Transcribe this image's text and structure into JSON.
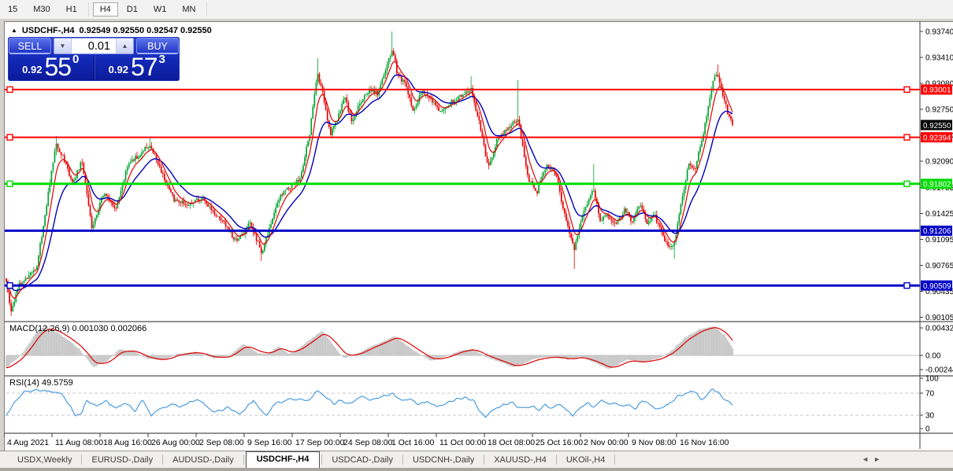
{
  "toolbar": {
    "timeframes": [
      "15",
      "M30",
      "H1",
      "H4",
      "D1",
      "W1",
      "MN"
    ],
    "active": "H4"
  },
  "chart": {
    "collapse_icon": "▲",
    "title": "USDCHF-,H4",
    "ohlc": "0.92549 0.92550 0.92547 0.92550"
  },
  "trade_panel": {
    "sell_label": "SELL",
    "buy_label": "BUY",
    "volume": "0.01",
    "down_icon": "▼",
    "up_icon": "▲",
    "sell_price": {
      "prefix": "0.92",
      "big": "55",
      "sup": "0"
    },
    "buy_price": {
      "prefix": "0.92",
      "big": "57",
      "sup": "3"
    }
  },
  "indicators": {
    "macd_label": "MACD(12,26,9) 0.001030 0.002066",
    "rsi_label": "RSI(14) 49.5759"
  },
  "tabs": {
    "items": [
      "USDX,Weekly",
      "EURUSD-,Daily",
      "AUDUSD-,Daily",
      "USDCHF-,H4",
      "USDCAD-,Daily",
      "USDCNH-,Daily",
      "XAUUSD-,H4",
      "UKOil-,H4"
    ],
    "active": "USDCHF-,H4",
    "scroll_left_icon": "◄",
    "scroll_right_icon": "►"
  },
  "colors": {
    "bull": "#00a32e",
    "bear": "#e60000",
    "ma_fast": "#e00000",
    "ma_slow": "#0000bb",
    "hist": "#c6c6c6",
    "signal": "#dd0000",
    "rsi": "#3d95e0",
    "axis_text": "#000000",
    "level_red": "#ff0000",
    "level_green": "#00dd00",
    "level_blue": "#0000c8",
    "bid_label_bg": "#000000"
  },
  "chart_data": {
    "type": "candlestick",
    "symbol": "USDCHF-",
    "timeframe": "H4",
    "current_price": 0.9255,
    "y_ticks": [
      "0.93740",
      "0.93410",
      "0.93080",
      "0.92750",
      "0.92420",
      "0.92090",
      "0.91755",
      "0.91425",
      "0.91095",
      "0.90765",
      "0.90435",
      "0.90105"
    ],
    "x_labels": [
      "4 Aug 2021",
      "11 Aug 08:00",
      "18 Aug 16:00",
      "26 Aug 00:00",
      "2 Sep 08:00",
      "9 Sep 16:00",
      "17 Sep 00:00",
      "24 Sep 08:00",
      "1 Oct 16:00",
      "11 Oct 00:00",
      "18 Oct 08:00",
      "25 Oct 16:00",
      "2 Nov 00:00",
      "9 Nov 08:00",
      "16 Nov 16:00"
    ],
    "levels": [
      {
        "price": 0.93001,
        "label": "0.93001",
        "color": "#ff0000",
        "width": 2,
        "handles": true
      },
      {
        "price": 0.92394,
        "label": "0.92394",
        "color": "#ff0000",
        "width": 2,
        "handles": true
      },
      {
        "price": 0.91802,
        "label": "0.91802",
        "color": "#00dd00",
        "width": 3,
        "handles": true
      },
      {
        "price": 0.91206,
        "label": "0.91206",
        "color": "#0000c8",
        "width": 3,
        "handles": false
      },
      {
        "price": 0.90509,
        "label": "0.90509",
        "color": "#0000c8",
        "width": 3,
        "handles": true
      }
    ],
    "bid_label": "0.92550",
    "price_path": [
      [
        0,
        0.9058
      ],
      [
        0.006,
        0.9016
      ],
      [
        0.018,
        0.9052
      ],
      [
        0.03,
        0.9062
      ],
      [
        0.042,
        0.9075
      ],
      [
        0.055,
        0.915
      ],
      [
        0.068,
        0.9232
      ],
      [
        0.08,
        0.921
      ],
      [
        0.092,
        0.918
      ],
      [
        0.104,
        0.9212
      ],
      [
        0.118,
        0.9125
      ],
      [
        0.134,
        0.9168
      ],
      [
        0.15,
        0.9148
      ],
      [
        0.168,
        0.9205
      ],
      [
        0.184,
        0.9218
      ],
      [
        0.198,
        0.923
      ],
      [
        0.215,
        0.9192
      ],
      [
        0.232,
        0.9158
      ],
      [
        0.25,
        0.9155
      ],
      [
        0.268,
        0.9162
      ],
      [
        0.285,
        0.9145
      ],
      [
        0.3,
        0.913
      ],
      [
        0.318,
        0.9105
      ],
      [
        0.335,
        0.9132
      ],
      [
        0.352,
        0.9092
      ],
      [
        0.366,
        0.9135
      ],
      [
        0.378,
        0.9165
      ],
      [
        0.392,
        0.9178
      ],
      [
        0.405,
        0.9188
      ],
      [
        0.418,
        0.9245
      ],
      [
        0.428,
        0.9322
      ],
      [
        0.436,
        0.9295
      ],
      [
        0.446,
        0.9242
      ],
      [
        0.455,
        0.926
      ],
      [
        0.466,
        0.929
      ],
      [
        0.476,
        0.9258
      ],
      [
        0.488,
        0.9285
      ],
      [
        0.5,
        0.93
      ],
      [
        0.512,
        0.9295
      ],
      [
        0.524,
        0.933
      ],
      [
        0.532,
        0.9352
      ],
      [
        0.538,
        0.9322
      ],
      [
        0.55,
        0.9305
      ],
      [
        0.56,
        0.9272
      ],
      [
        0.572,
        0.9298
      ],
      [
        0.585,
        0.9288
      ],
      [
        0.598,
        0.9272
      ],
      [
        0.61,
        0.9282
      ],
      [
        0.625,
        0.9292
      ],
      [
        0.64,
        0.93
      ],
      [
        0.652,
        0.9255
      ],
      [
        0.664,
        0.92
      ],
      [
        0.676,
        0.9238
      ],
      [
        0.69,
        0.9252
      ],
      [
        0.705,
        0.9262
      ],
      [
        0.718,
        0.9188
      ],
      [
        0.73,
        0.9168
      ],
      [
        0.744,
        0.9205
      ],
      [
        0.757,
        0.9192
      ],
      [
        0.77,
        0.9135
      ],
      [
        0.782,
        0.9098
      ],
      [
        0.795,
        0.9142
      ],
      [
        0.808,
        0.9175
      ],
      [
        0.818,
        0.9135
      ],
      [
        0.828,
        0.9142
      ],
      [
        0.84,
        0.9128
      ],
      [
        0.852,
        0.9148
      ],
      [
        0.862,
        0.9132
      ],
      [
        0.872,
        0.9155
      ],
      [
        0.882,
        0.913
      ],
      [
        0.892,
        0.9142
      ],
      [
        0.902,
        0.9118
      ],
      [
        0.912,
        0.91
      ],
      [
        0.92,
        0.9105
      ],
      [
        0.93,
        0.9158
      ],
      [
        0.94,
        0.9208
      ],
      [
        0.948,
        0.9198
      ],
      [
        0.956,
        0.9228
      ],
      [
        0.965,
        0.9268
      ],
      [
        0.973,
        0.931
      ],
      [
        0.979,
        0.9322
      ],
      [
        0.986,
        0.9295
      ],
      [
        0.993,
        0.9272
      ],
      [
        1,
        0.9255
      ]
    ],
    "wick_spikes": [
      {
        "f": 0.006,
        "low": 0.9012
      },
      {
        "f": 0.068,
        "high": 0.9241
      },
      {
        "f": 0.198,
        "high": 0.924
      },
      {
        "f": 0.352,
        "low": 0.9082
      },
      {
        "f": 0.428,
        "high": 0.934
      },
      {
        "f": 0.532,
        "high": 0.9374
      },
      {
        "f": 0.64,
        "high": 0.9317
      },
      {
        "f": 0.705,
        "high": 0.9312
      },
      {
        "f": 0.782,
        "low": 0.9072
      },
      {
        "f": 0.808,
        "high": 0.9205
      },
      {
        "f": 0.92,
        "low": 0.9085
      },
      {
        "f": 0.979,
        "high": 0.9332
      }
    ],
    "macd": {
      "points": [
        [
          0,
          -0.0018
        ],
        [
          0.02,
          0
        ],
        [
          0.045,
          0.0038
        ],
        [
          0.055,
          0.0042
        ],
        [
          0.075,
          0.003
        ],
        [
          0.1,
          0.001
        ],
        [
          0.12,
          -0.0017
        ],
        [
          0.14,
          -0.0008
        ],
        [
          0.155,
          0.0009
        ],
        [
          0.175,
          0.0006
        ],
        [
          0.195,
          -0.0005
        ],
        [
          0.215,
          -0.0007
        ],
        [
          0.235,
          0.0002
        ],
        [
          0.26,
          0.0005
        ],
        [
          0.285,
          -0.0004
        ],
        [
          0.305,
          -0.0002
        ],
        [
          0.327,
          0.0017
        ],
        [
          0.345,
          0.0004
        ],
        [
          0.36,
          0.0002
        ],
        [
          0.375,
          0.0013
        ],
        [
          0.39,
          0.0002
        ],
        [
          0.405,
          0.0012
        ],
        [
          0.425,
          0.0028
        ],
        [
          0.435,
          0.0036
        ],
        [
          0.455,
          0.0008
        ],
        [
          0.465,
          -0.0004
        ],
        [
          0.48,
          0.0001
        ],
        [
          0.5,
          0.0012
        ],
        [
          0.535,
          0.0028
        ],
        [
          0.56,
          0.0008
        ],
        [
          0.585,
          -0.0008
        ],
        [
          0.6,
          -0.0004
        ],
        [
          0.625,
          0.0007
        ],
        [
          0.642,
          0.0009
        ],
        [
          0.66,
          -0.0002
        ],
        [
          0.7,
          -0.0017
        ],
        [
          0.73,
          -0.0004
        ],
        [
          0.755,
          -0.0002
        ],
        [
          0.775,
          -0.0006
        ],
        [
          0.79,
          -0.0002
        ],
        [
          0.805,
          -0.0008
        ],
        [
          0.83,
          -0.002
        ],
        [
          0.855,
          -0.0006
        ],
        [
          0.875,
          -0.001
        ],
        [
          0.9,
          -0.0004
        ],
        [
          0.915,
          0.0006
        ],
        [
          0.935,
          0.0026
        ],
        [
          0.955,
          0.0038
        ],
        [
          0.975,
          0.0042
        ],
        [
          0.99,
          0.0028
        ],
        [
          1,
          0.001
        ]
      ],
      "scale_labels": [
        "0.004323",
        "0.00",
        "-0.002445"
      ]
    },
    "rsi": {
      "points": [
        [
          0,
          29
        ],
        [
          0.01,
          50
        ],
        [
          0.024,
          73
        ],
        [
          0.055,
          74
        ],
        [
          0.075,
          71
        ],
        [
          0.088,
          45
        ],
        [
          0.096,
          28
        ],
        [
          0.104,
          34
        ],
        [
          0.111,
          56
        ],
        [
          0.125,
          47
        ],
        [
          0.138,
          55
        ],
        [
          0.15,
          42
        ],
        [
          0.163,
          53
        ],
        [
          0.178,
          38
        ],
        [
          0.188,
          58
        ],
        [
          0.2,
          29
        ],
        [
          0.213,
          42
        ],
        [
          0.227,
          50
        ],
        [
          0.24,
          44
        ],
        [
          0.253,
          52
        ],
        [
          0.265,
          58
        ],
        [
          0.278,
          42
        ],
        [
          0.29,
          37
        ],
        [
          0.305,
          46
        ],
        [
          0.322,
          33
        ],
        [
          0.34,
          57
        ],
        [
          0.358,
          30
        ],
        [
          0.372,
          52
        ],
        [
          0.388,
          58
        ],
        [
          0.402,
          60
        ],
        [
          0.415,
          55
        ],
        [
          0.428,
          72
        ],
        [
          0.44,
          62
        ],
        [
          0.452,
          50
        ],
        [
          0.462,
          58
        ],
        [
          0.475,
          52
        ],
        [
          0.487,
          62
        ],
        [
          0.5,
          57
        ],
        [
          0.515,
          63
        ],
        [
          0.53,
          68
        ],
        [
          0.544,
          57
        ],
        [
          0.556,
          62
        ],
        [
          0.568,
          50
        ],
        [
          0.58,
          55
        ],
        [
          0.592,
          46
        ],
        [
          0.605,
          53
        ],
        [
          0.617,
          58
        ],
        [
          0.63,
          61
        ],
        [
          0.643,
          57
        ],
        [
          0.652,
          38
        ],
        [
          0.66,
          27
        ],
        [
          0.672,
          40
        ],
        [
          0.683,
          46
        ],
        [
          0.694,
          55
        ],
        [
          0.704,
          42
        ],
        [
          0.714,
          46
        ],
        [
          0.724,
          45
        ],
        [
          0.733,
          38
        ],
        [
          0.742,
          50
        ],
        [
          0.752,
          43
        ],
        [
          0.762,
          50
        ],
        [
          0.772,
          40
        ],
        [
          0.78,
          27
        ],
        [
          0.79,
          45
        ],
        [
          0.8,
          52
        ],
        [
          0.81,
          44
        ],
        [
          0.82,
          55
        ],
        [
          0.83,
          48
        ],
        [
          0.84,
          52
        ],
        [
          0.85,
          45
        ],
        [
          0.858,
          50
        ],
        [
          0.867,
          42
        ],
        [
          0.875,
          55
        ],
        [
          0.883,
          52
        ],
        [
          0.89,
          45
        ],
        [
          0.9,
          40
        ],
        [
          0.908,
          47
        ],
        [
          0.917,
          55
        ],
        [
          0.925,
          63
        ],
        [
          0.935,
          70
        ],
        [
          0.944,
          72
        ],
        [
          0.95,
          69
        ],
        [
          0.957,
          57
        ],
        [
          0.964,
          63
        ],
        [
          0.972,
          77
        ],
        [
          0.98,
          71
        ],
        [
          0.99,
          57
        ],
        [
          1,
          49.6
        ]
      ],
      "levels": [
        70,
        30
      ],
      "scale_labels": [
        "100",
        "70",
        "30",
        "0"
      ]
    }
  }
}
